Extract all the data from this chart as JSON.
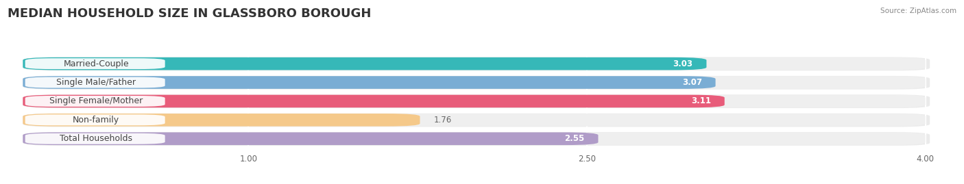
{
  "title": "MEDIAN HOUSEHOLD SIZE IN GLASSBORO BOROUGH",
  "source": "Source: ZipAtlas.com",
  "categories": [
    "Married-Couple",
    "Single Male/Father",
    "Single Female/Mother",
    "Non-family",
    "Total Households"
  ],
  "values": [
    3.03,
    3.07,
    3.11,
    1.76,
    2.55
  ],
  "bar_colors": [
    "#36b8b8",
    "#7aadd4",
    "#e85c7a",
    "#f5c98a",
    "#b09cc8"
  ],
  "bar_bg_color": "#efefef",
  "label_bg_color": "#ffffff",
  "xticks": [
    1.0,
    2.5,
    4.0
  ],
  "xtick_labels": [
    "1.00",
    "2.50",
    "4.00"
  ],
  "xmin": 0.0,
  "xmax": 4.0,
  "label_fontsize": 9,
  "value_fontsize": 8.5,
  "title_fontsize": 13,
  "bar_height": 0.68,
  "background_color": "#ffffff",
  "value_inside_color": "#ffffff",
  "value_outside_color": "#666666"
}
